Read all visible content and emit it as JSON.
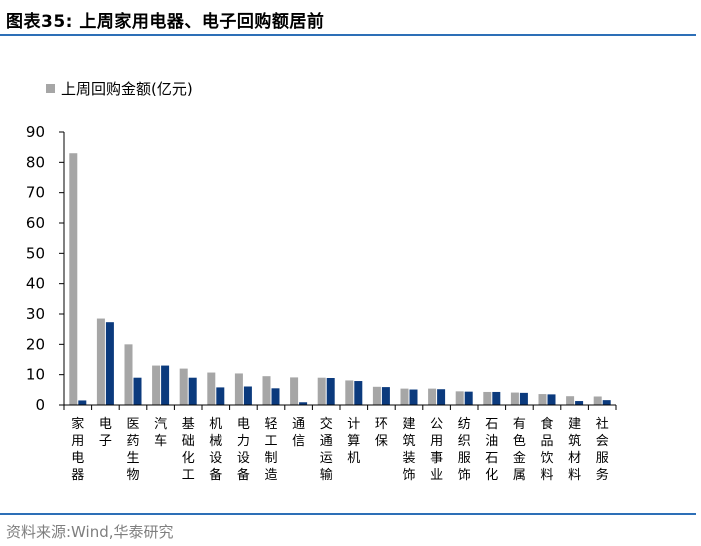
{
  "figure": {
    "title": "图表35:  上周家用电器、电子回购额居前",
    "source": "资料来源:Wind,华泰研究"
  },
  "colors": {
    "series_gray": "#a6a6a6",
    "series_navy": "#0b3a7d",
    "rule": "#2d6fb7"
  },
  "chart_data": {
    "type": "bar",
    "title": "",
    "xlabel": "",
    "ylabel": "",
    "ylim": [
      0,
      90
    ],
    "yticks": [
      0,
      10,
      20,
      30,
      40,
      50,
      60,
      70,
      80,
      90
    ],
    "grid": false,
    "legend_position": "top-left",
    "categories": [
      "家用电器",
      "电子",
      "医药生物",
      "汽车",
      "基础化工",
      "机械设备",
      "电力设备",
      "轻工制造",
      "通信",
      "交通运输",
      "计算机",
      "环保",
      "建筑装饰",
      "公用事业",
      "纺织服饰",
      "石油石化",
      "有色金属",
      "食品饮料",
      "建筑材料",
      "社会服务"
    ],
    "series": [
      {
        "name": "上周回购金额(亿元)",
        "color": "#a6a6a6",
        "values": [
          83,
          28.5,
          20,
          13,
          12,
          10.7,
          10.4,
          9.5,
          9.1,
          9.0,
          8.1,
          6.0,
          5.4,
          5.4,
          4.5,
          4.3,
          4.1,
          3.6,
          2.9,
          2.8
        ]
      },
      {
        "name": "",
        "color": "#0b3a7d",
        "values": [
          1.5,
          27.3,
          9.0,
          13.0,
          9.0,
          5.8,
          6.1,
          5.5,
          0.9,
          8.9,
          7.9,
          5.9,
          5.1,
          5.2,
          4.4,
          4.3,
          4.0,
          3.5,
          1.3,
          1.6
        ]
      }
    ]
  }
}
